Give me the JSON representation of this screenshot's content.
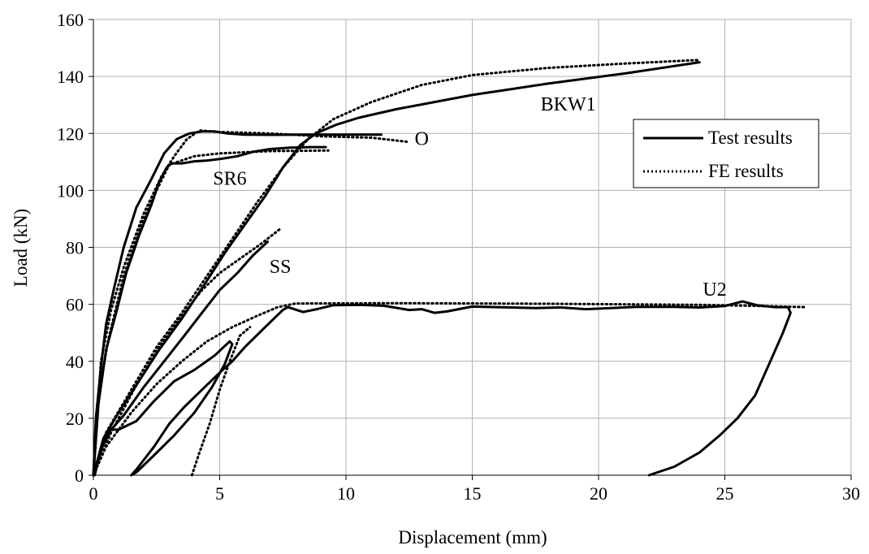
{
  "chart_data": {
    "type": "line",
    "title": "",
    "xlabel": "Displacement (mm)",
    "ylabel": "Load (kN)",
    "xlim": [
      0,
      30
    ],
    "ylim": [
      0,
      160
    ],
    "xticks": [
      0,
      5,
      10,
      15,
      20,
      25,
      30
    ],
    "yticks": [
      0,
      20,
      40,
      60,
      80,
      100,
      120,
      140,
      160
    ],
    "grid": true,
    "legend": {
      "position": "top-right",
      "entries": [
        {
          "label": "Test results",
          "style": "solid"
        },
        {
          "label": "FE results",
          "style": "dotted"
        }
      ]
    },
    "colors": {
      "line": "#000000",
      "grid": "#b0b0b0"
    },
    "annotations": [
      {
        "text": "BKW1",
        "x": 18.8,
        "y": 128
      },
      {
        "text": "O",
        "x": 13.0,
        "y": 116
      },
      {
        "text": "SR6",
        "x": 5.4,
        "y": 102
      },
      {
        "text": "SS",
        "x": 7.4,
        "y": 71
      },
      {
        "text": "U2",
        "x": 24.6,
        "y": 63
      }
    ],
    "series": [
      {
        "style": "solid",
        "points": [
          [
            0,
            0
          ],
          [
            0.1,
            20
          ],
          [
            0.3,
            38
          ],
          [
            0.5,
            53
          ],
          [
            0.8,
            65
          ],
          [
            1.2,
            80
          ],
          [
            1.7,
            94
          ],
          [
            2.3,
            104
          ],
          [
            2.8,
            113
          ],
          [
            3.3,
            118
          ],
          [
            3.8,
            120
          ],
          [
            4.3,
            120.7
          ],
          [
            4.8,
            120.7
          ],
          [
            5.3,
            120
          ],
          [
            6.0,
            119.6
          ],
          [
            7.0,
            119.5
          ],
          [
            8.5,
            119.6
          ],
          [
            10.0,
            119.6
          ],
          [
            11.4,
            119.6
          ]
        ]
      },
      {
        "style": "dotted",
        "points": [
          [
            0,
            0
          ],
          [
            0.3,
            40
          ],
          [
            0.7,
            58
          ],
          [
            1.2,
            73
          ],
          [
            2.0,
            92
          ],
          [
            2.7,
            105
          ],
          [
            3.2,
            112
          ],
          [
            3.7,
            118
          ],
          [
            4.2,
            121
          ],
          [
            5.0,
            120.5
          ],
          [
            7.0,
            120
          ],
          [
            9.0,
            119
          ],
          [
            11.0,
            118.5
          ],
          [
            12.5,
            117
          ]
        ]
      },
      {
        "style": "solid",
        "points": [
          [
            0,
            0
          ],
          [
            0.2,
            25
          ],
          [
            0.5,
            44
          ],
          [
            0.9,
            57
          ],
          [
            1.3,
            71
          ],
          [
            1.8,
            84
          ],
          [
            2.3,
            95
          ],
          [
            2.6,
            103
          ],
          [
            2.9,
            108
          ],
          [
            3.1,
            109.5
          ],
          [
            3.5,
            109.5
          ],
          [
            4.0,
            110.2
          ],
          [
            4.5,
            110.5
          ],
          [
            5.0,
            111
          ],
          [
            5.7,
            112
          ],
          [
            6.3,
            113.5
          ],
          [
            7.0,
            114.5
          ],
          [
            7.8,
            115
          ],
          [
            8.6,
            115.2
          ],
          [
            9.2,
            115.2
          ]
        ]
      },
      {
        "style": "dotted",
        "points": [
          [
            0,
            0
          ],
          [
            0.2,
            28
          ],
          [
            0.6,
            48
          ],
          [
            1.2,
            70
          ],
          [
            1.9,
            88
          ],
          [
            2.5,
            100
          ],
          [
            3.0,
            109
          ],
          [
            4.0,
            112
          ],
          [
            5.0,
            113
          ],
          [
            7.0,
            113.8
          ],
          [
            9.3,
            114
          ]
        ]
      },
      {
        "style": "solid",
        "points": [
          [
            0,
            0
          ],
          [
            0.4,
            13
          ],
          [
            1.0,
            22
          ],
          [
            1.8,
            33
          ],
          [
            2.6,
            44
          ],
          [
            3.5,
            55
          ],
          [
            4.4,
            67
          ],
          [
            5.2,
            78
          ],
          [
            6.0,
            88
          ],
          [
            6.8,
            98
          ],
          [
            7.5,
            108
          ],
          [
            8.2,
            116
          ],
          [
            8.8,
            120
          ],
          [
            9.6,
            123
          ],
          [
            10.5,
            125.5
          ],
          [
            12.0,
            128.5
          ],
          [
            15.0,
            133.5
          ],
          [
            18.0,
            137.5
          ],
          [
            21.0,
            141
          ],
          [
            24.0,
            145
          ]
        ]
      },
      {
        "style": "dotted",
        "points": [
          [
            0,
            0
          ],
          [
            0.5,
            15
          ],
          [
            1.5,
            30
          ],
          [
            2.5,
            45
          ],
          [
            3.5,
            57
          ],
          [
            4.5,
            70
          ],
          [
            5.5,
            83
          ],
          [
            6.5,
            96
          ],
          [
            7.5,
            108
          ],
          [
            8.5,
            118
          ],
          [
            9.5,
            125
          ],
          [
            11.0,
            131
          ],
          [
            13.0,
            137
          ],
          [
            15.0,
            140.5
          ],
          [
            18.0,
            143
          ],
          [
            21.0,
            144.5
          ],
          [
            24.0,
            145.8
          ]
        ]
      },
      {
        "style": "solid",
        "points": [
          [
            0,
            0
          ],
          [
            0.5,
            14
          ],
          [
            1.2,
            21
          ],
          [
            2.0,
            31
          ],
          [
            2.8,
            40
          ],
          [
            3.6,
            49
          ],
          [
            4.3,
            57
          ],
          [
            5.0,
            65
          ],
          [
            5.7,
            71
          ],
          [
            6.3,
            77
          ],
          [
            6.9,
            82
          ]
        ]
      },
      {
        "style": "dotted",
        "points": [
          [
            0,
            0
          ],
          [
            0.7,
            15
          ],
          [
            1.6,
            30
          ],
          [
            2.6,
            45
          ],
          [
            3.5,
            56
          ],
          [
            4.3,
            65
          ],
          [
            5.0,
            71
          ],
          [
            5.8,
            76
          ],
          [
            6.6,
            81
          ],
          [
            7.4,
            86.5
          ]
        ]
      },
      {
        "style": "solid",
        "points": [
          [
            1.5,
            0
          ],
          [
            1.7,
            1
          ],
          [
            2.4,
            7
          ],
          [
            3.2,
            14
          ],
          [
            4.0,
            22
          ],
          [
            4.7,
            31
          ],
          [
            5.2,
            39
          ],
          [
            5.5,
            46
          ],
          [
            5.4,
            47
          ],
          [
            4.8,
            42
          ],
          [
            4.0,
            37
          ],
          [
            3.2,
            33
          ],
          [
            2.4,
            26
          ],
          [
            1.7,
            19
          ],
          [
            1.0,
            16
          ],
          [
            0.7,
            16
          ],
          [
            0.3,
            9
          ],
          [
            0.05,
            0
          ]
        ]
      },
      {
        "style": "solid",
        "points": [
          [
            1.5,
            0
          ],
          [
            1.7,
            2
          ],
          [
            2.4,
            10
          ],
          [
            3.0,
            18
          ],
          [
            3.6,
            24
          ],
          [
            4.3,
            30
          ],
          [
            5.0,
            36
          ],
          [
            5.5,
            40
          ],
          [
            6.0,
            45
          ],
          [
            6.8,
            52
          ],
          [
            7.5,
            58
          ],
          [
            7.7,
            59
          ],
          [
            8.3,
            57.3
          ],
          [
            8.8,
            58.2
          ],
          [
            9.5,
            59.7
          ],
          [
            10.5,
            59.8
          ],
          [
            11.5,
            59.5
          ],
          [
            12.5,
            58
          ],
          [
            13.0,
            58.3
          ],
          [
            13.5,
            57
          ],
          [
            14.0,
            57.5
          ],
          [
            15.0,
            59.2
          ],
          [
            16.0,
            59
          ],
          [
            17.5,
            58.7
          ],
          [
            18.5,
            58.9
          ],
          [
            19.5,
            58.3
          ],
          [
            20.5,
            58.7
          ],
          [
            21.5,
            59.1
          ],
          [
            23.0,
            59.1
          ],
          [
            24.0,
            58.9
          ],
          [
            25.0,
            59.4
          ],
          [
            25.7,
            61
          ],
          [
            26.3,
            59.6
          ],
          [
            27.0,
            59
          ],
          [
            27.5,
            59
          ],
          [
            27.6,
            57
          ],
          [
            27.3,
            50
          ],
          [
            26.8,
            40
          ],
          [
            26.2,
            28
          ],
          [
            25.5,
            20
          ],
          [
            24.8,
            14
          ],
          [
            24.0,
            8
          ],
          [
            23.0,
            3
          ],
          [
            22.0,
            0
          ]
        ]
      },
      {
        "style": "dotted",
        "points": [
          [
            0,
            0
          ],
          [
            0.5,
            10
          ],
          [
            1.5,
            22
          ],
          [
            2.5,
            32
          ],
          [
            3.5,
            40
          ],
          [
            4.5,
            47
          ],
          [
            5.5,
            52
          ],
          [
            6.5,
            56
          ],
          [
            7.3,
            59
          ],
          [
            8.0,
            60.3
          ],
          [
            12.0,
            60.4
          ],
          [
            18.0,
            60.2
          ],
          [
            24.0,
            59.8
          ],
          [
            26.0,
            59.5
          ],
          [
            28.2,
            59
          ]
        ]
      },
      {
        "style": "dotted",
        "points": [
          [
            3.9,
            0
          ],
          [
            4.2,
            8
          ],
          [
            4.6,
            18
          ],
          [
            5.0,
            30
          ],
          [
            5.4,
            40
          ],
          [
            5.8,
            49
          ],
          [
            6.2,
            52
          ]
        ]
      }
    ]
  }
}
